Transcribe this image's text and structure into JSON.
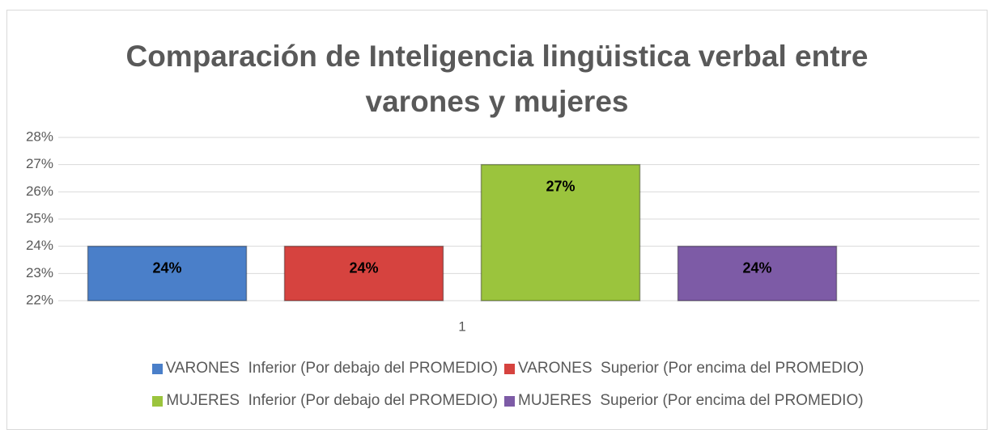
{
  "chart_data": {
    "type": "bar",
    "title": "Comparación de Inteligencia lingüistica verbal entre varones y mujeres",
    "categories": [
      "1"
    ],
    "series": [
      {
        "name": "VARONES  Inferior (Por debajo del PROMEDIO)",
        "color": "#4a7fc9",
        "values": [
          24
        ],
        "value_labels": [
          "24%"
        ]
      },
      {
        "name": "VARONES  Superior (Por encima del PROMEDIO)",
        "color": "#d6433f",
        "values": [
          24
        ],
        "value_labels": [
          "24%"
        ]
      },
      {
        "name": "MUJERES  Inferior (Por debajo del PROMEDIO)",
        "color": "#9bc43d",
        "values": [
          27
        ],
        "value_labels": [
          "27%"
        ]
      },
      {
        "name": "MUJERES  Superior (Por encima del PROMEDIO)",
        "color": "#7d5ba6",
        "values": [
          24
        ],
        "value_labels": [
          "24%"
        ]
      }
    ],
    "ylim": [
      22,
      28
    ],
    "yticks": [
      {
        "value": 22,
        "label": "22%"
      },
      {
        "value": 23,
        "label": "23%"
      },
      {
        "value": 24,
        "label": "24%"
      },
      {
        "value": 25,
        "label": "25%"
      },
      {
        "value": 26,
        "label": "26%"
      },
      {
        "value": 27,
        "label": "27%"
      },
      {
        "value": 28,
        "label": "28%"
      }
    ],
    "grid": true,
    "legend": "bottom"
  }
}
